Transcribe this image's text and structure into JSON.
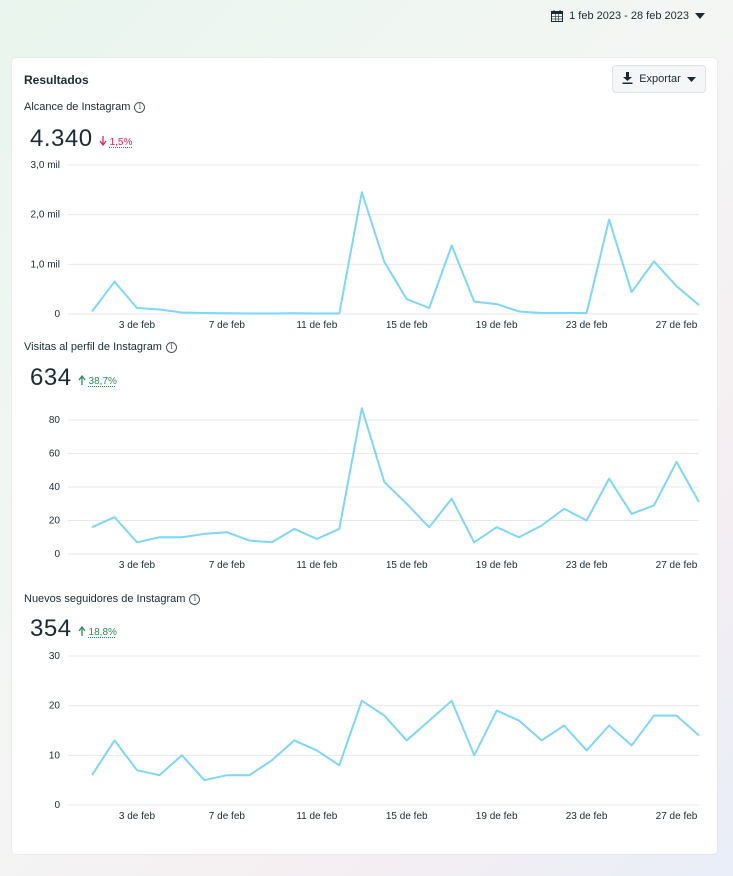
{
  "date_range": {
    "label": "1 feb 2023 - 28 feb 2023"
  },
  "card": {
    "title": "Resultados",
    "export_label": "Exportar"
  },
  "metrics": [
    {
      "label": "Alcance de Instagram",
      "value": "4.340",
      "change": "1,5%",
      "direction": "down"
    },
    {
      "label": "Visitas al perfil de Instagram",
      "value": "634",
      "change": "38,7%",
      "direction": "up"
    },
    {
      "label": "Nuevos seguidores de Instagram",
      "value": "354",
      "change": "18,8%",
      "direction": "up"
    }
  ],
  "colors": {
    "line": "#7fd6f5",
    "down": "#e0245e",
    "up": "#2e8b57"
  },
  "chart_data": [
    {
      "type": "line",
      "x": [
        "1 de feb",
        "2 de feb",
        "3 de feb",
        "4 de feb",
        "5 de feb",
        "6 de feb",
        "7 de feb",
        "8 de feb",
        "9 de feb",
        "10 de feb",
        "11 de feb",
        "12 de feb",
        "13 de feb",
        "14 de feb",
        "15 de feb",
        "16 de feb",
        "17 de feb",
        "18 de feb",
        "19 de feb",
        "20 de feb",
        "21 de feb",
        "22 de feb",
        "23 de feb",
        "24 de feb",
        "25 de feb",
        "26 de feb",
        "27 de feb",
        "28 de feb"
      ],
      "x_tick_labels": [
        "3 de feb",
        "7 de feb",
        "11 de feb",
        "15 de feb",
        "19 de feb",
        "23 de feb",
        "27 de feb"
      ],
      "x_tick_index": [
        2,
        6,
        10,
        14,
        18,
        22,
        26
      ],
      "y_tick_values": [
        0,
        1000,
        2000,
        3000
      ],
      "y_tick_labels": [
        "0",
        "1,0 mil",
        "2,0 mil",
        "3,0 mil"
      ],
      "ylim": [
        0,
        3000
      ],
      "grid": true,
      "series": [
        {
          "values": [
            50,
            650,
            120,
            90,
            30,
            20,
            15,
            10,
            10,
            15,
            10,
            10,
            2450,
            1050,
            300,
            120,
            1380,
            250,
            200,
            50,
            20,
            20,
            20,
            1900,
            440,
            1060,
            560,
            180
          ]
        }
      ]
    },
    {
      "type": "line",
      "x": [
        "1 de feb",
        "2 de feb",
        "3 de feb",
        "4 de feb",
        "5 de feb",
        "6 de feb",
        "7 de feb",
        "8 de feb",
        "9 de feb",
        "10 de feb",
        "11 de feb",
        "12 de feb",
        "13 de feb",
        "14 de feb",
        "15 de feb",
        "16 de feb",
        "17 de feb",
        "18 de feb",
        "19 de feb",
        "20 de feb",
        "21 de feb",
        "22 de feb",
        "23 de feb",
        "24 de feb",
        "25 de feb",
        "26 de feb",
        "27 de feb",
        "28 de feb"
      ],
      "x_tick_labels": [
        "3 de feb",
        "7 de feb",
        "11 de feb",
        "15 de feb",
        "19 de feb",
        "23 de feb",
        "27 de feb"
      ],
      "x_tick_index": [
        2,
        6,
        10,
        14,
        18,
        22,
        26
      ],
      "y_tick_values": [
        0,
        20,
        40,
        60,
        80
      ],
      "y_tick_labels": [
        "0",
        "20",
        "40",
        "60",
        "80"
      ],
      "ylim": [
        0,
        90
      ],
      "grid": true,
      "series": [
        {
          "values": [
            16,
            22,
            7,
            10,
            10,
            12,
            13,
            8,
            7,
            15,
            9,
            15,
            87,
            43,
            30,
            16,
            33,
            7,
            16,
            10,
            17,
            27,
            20,
            45,
            24,
            29,
            55,
            31
          ]
        }
      ]
    },
    {
      "type": "line",
      "x": [
        "1 de feb",
        "2 de feb",
        "3 de feb",
        "4 de feb",
        "5 de feb",
        "6 de feb",
        "7 de feb",
        "8 de feb",
        "9 de feb",
        "10 de feb",
        "11 de feb",
        "12 de feb",
        "13 de feb",
        "14 de feb",
        "15 de feb",
        "16 de feb",
        "17 de feb",
        "18 de feb",
        "19 de feb",
        "20 de feb",
        "21 de feb",
        "22 de feb",
        "23 de feb",
        "24 de feb",
        "25 de feb",
        "26 de feb",
        "27 de feb",
        "28 de feb"
      ],
      "x_tick_labels": [
        "3 de feb",
        "7 de feb",
        "11 de feb",
        "15 de feb",
        "19 de feb",
        "23 de feb",
        "27 de feb"
      ],
      "x_tick_index": [
        2,
        6,
        10,
        14,
        18,
        22,
        26
      ],
      "y_tick_values": [
        0,
        10,
        20,
        30
      ],
      "y_tick_labels": [
        "0",
        "10",
        "20",
        "30"
      ],
      "ylim": [
        0,
        30
      ],
      "grid": true,
      "series": [
        {
          "values": [
            6,
            13,
            7,
            6,
            10,
            5,
            6,
            6,
            9,
            13,
            11,
            8,
            21,
            18,
            13,
            17,
            21,
            10,
            19,
            17,
            13,
            16,
            11,
            16,
            12,
            18,
            18,
            14
          ]
        }
      ]
    }
  ]
}
